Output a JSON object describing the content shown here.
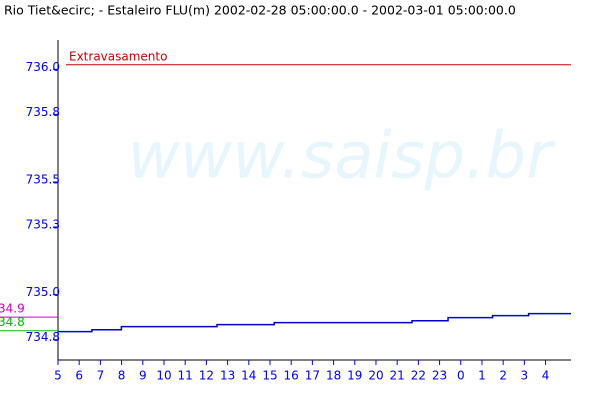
{
  "chart_data": {
    "type": "line",
    "title": "Rio Tiet&ecirc; - Estaleiro FLU(m) 2002-02-28 05:00:00.0 - 2002-03-01 05:00:00.0",
    "watermark": "www.saisp.br",
    "x": [
      0,
      1.6,
      1.6,
      2.99,
      2.99,
      7.5,
      7.5,
      10.2,
      10.2,
      16.7,
      16.7,
      18.4,
      18.4,
      20.5,
      20.5,
      22.2,
      22.2,
      24.2
    ],
    "series": [
      {
        "color": "#0000cc",
        "values": [
          734.836,
          734.836,
          734.844,
          734.844,
          734.858,
          734.858,
          734.867,
          734.867,
          734.876,
          734.876,
          734.884,
          734.884,
          734.898,
          734.898,
          734.907,
          734.907,
          734.916,
          734.916
        ]
      }
    ],
    "xlim": [
      0,
      24.2
    ],
    "xticks": [
      {
        "value": 0,
        "label": "5"
      },
      {
        "value": 1,
        "label": "6"
      },
      {
        "value": 2,
        "label": "7"
      },
      {
        "value": 3,
        "label": "8"
      },
      {
        "value": 4,
        "label": "9"
      },
      {
        "value": 5,
        "label": "10"
      },
      {
        "value": 6,
        "label": "11"
      },
      {
        "value": 7,
        "label": "12"
      },
      {
        "value": 8,
        "label": "13"
      },
      {
        "value": 9,
        "label": "14"
      },
      {
        "value": 10,
        "label": "15"
      },
      {
        "value": 11,
        "label": "16"
      },
      {
        "value": 12,
        "label": "17"
      },
      {
        "value": 13,
        "label": "18"
      },
      {
        "value": 14,
        "label": "19"
      },
      {
        "value": 15,
        "label": "20"
      },
      {
        "value": 16,
        "label": "21"
      },
      {
        "value": 17,
        "label": "22"
      },
      {
        "value": 18,
        "label": "23"
      },
      {
        "value": 19,
        "label": "0"
      },
      {
        "value": 20,
        "label": "1"
      },
      {
        "value": 21,
        "label": "2"
      },
      {
        "value": 22,
        "label": "3"
      },
      {
        "value": 23,
        "label": "4"
      }
    ],
    "ylim": [
      734.71,
      736.13
    ],
    "yticks": [
      {
        "value": 736,
        "label": "736.0"
      },
      735.8,
      735.5,
      735.3,
      {
        "value": 735,
        "label": "735.0"
      },
      734.8
    ],
    "reference_lines": [
      {
        "label": "Extravasamento",
        "value": 736.02,
        "color": "#cc0000"
      },
      {
        "label": "34.9",
        "value": 734.9,
        "color": "#cc00cc"
      },
      {
        "label": "34.8",
        "value": 734.84,
        "color": "#00bb00"
      }
    ]
  }
}
